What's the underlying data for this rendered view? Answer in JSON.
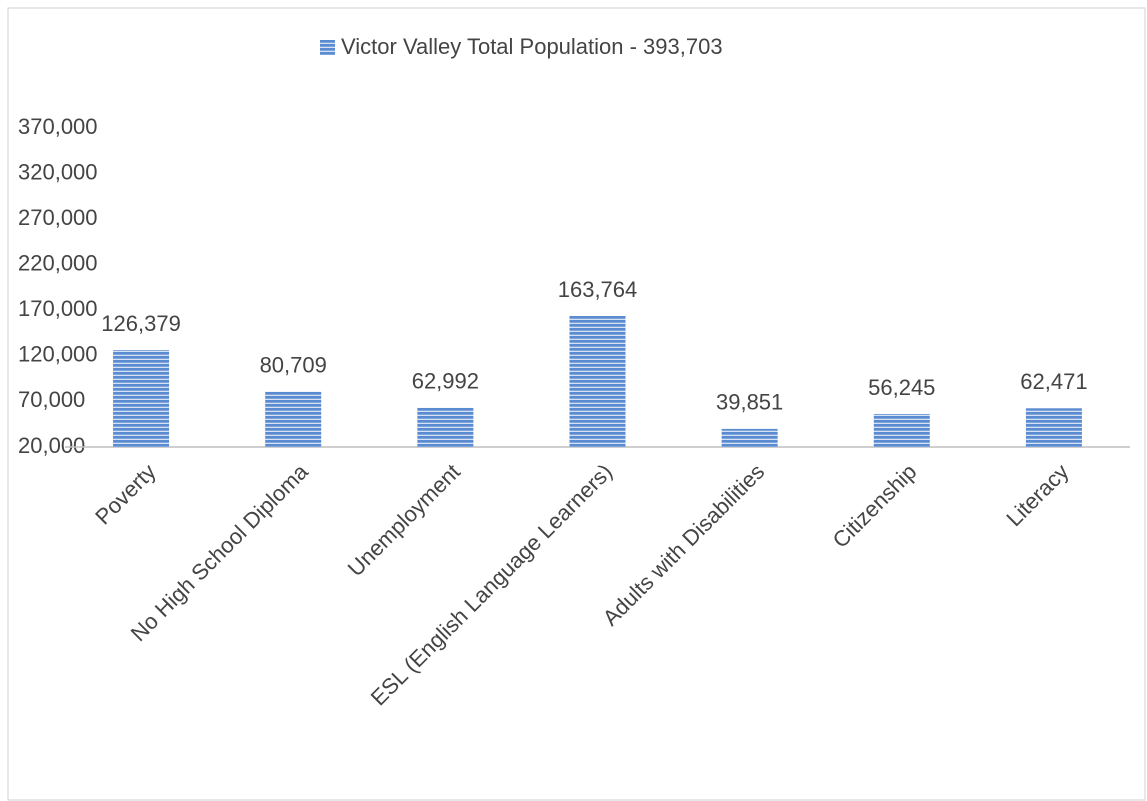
{
  "chart_data": {
    "type": "bar",
    "categories": [
      "Poverty",
      "No High School Diploma",
      "Unemployment",
      "ESL (English Language Learners)",
      "Adults with Disabilities",
      "Citizenship",
      "Literacy"
    ],
    "series": [
      {
        "name": "Victor Valley Total Population - 393,703",
        "color": "#5b8bd0",
        "values": [
          126379,
          80709,
          62992,
          163764,
          39851,
          56245,
          62471
        ],
        "value_labels": [
          "126,379",
          "80,709",
          "62,992",
          "163,764",
          "39,851",
          "56,245",
          "62,471"
        ]
      }
    ],
    "ylim": [
      20000,
      370000
    ],
    "yticks": [
      {
        "value": 20000,
        "label": "20,000"
      },
      {
        "value": 70000,
        "label": "70,000"
      },
      {
        "value": 120000,
        "label": "120,000"
      },
      {
        "value": 170000,
        "label": "170,000"
      },
      {
        "value": 220000,
        "label": "220,000"
      },
      {
        "value": 270000,
        "label": "270,000"
      },
      {
        "value": 320000,
        "label": "320,000"
      },
      {
        "value": 370000,
        "label": "370,000"
      }
    ],
    "grid": false,
    "legend": "top"
  }
}
